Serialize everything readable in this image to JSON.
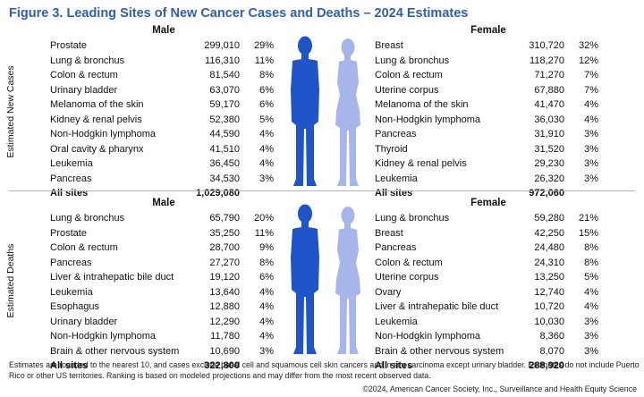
{
  "chart_data": {
    "type": "table",
    "title": "Figure 3. Leading Sites of New Cancer Cases and Deaths – 2024 Estimates",
    "sections": [
      {
        "label": "Estimated New Cases",
        "male": {
          "header": "Male",
          "rows": [
            {
              "site": "Prostate",
              "count": "299,010",
              "pct": "29%"
            },
            {
              "site": "Lung & bronchus",
              "count": "116,310",
              "pct": "11%"
            },
            {
              "site": "Colon & rectum",
              "count": "81,540",
              "pct": "8%"
            },
            {
              "site": "Urinary bladder",
              "count": "63,070",
              "pct": "6%"
            },
            {
              "site": "Melanoma of the skin",
              "count": "59,170",
              "pct": "6%"
            },
            {
              "site": "Kidney & renal pelvis",
              "count": "52,380",
              "pct": "5%"
            },
            {
              "site": "Non-Hodgkin lymphoma",
              "count": "44,590",
              "pct": "4%"
            },
            {
              "site": "Oral cavity & pharynx",
              "count": "41,510",
              "pct": "4%"
            },
            {
              "site": "Leukemia",
              "count": "36,450",
              "pct": "4%"
            },
            {
              "site": "Pancreas",
              "count": "34,530",
              "pct": "3%"
            }
          ],
          "total": {
            "site": "All sites",
            "count": "1,029,080"
          }
        },
        "female": {
          "header": "Female",
          "rows": [
            {
              "site": "Breast",
              "count": "310,720",
              "pct": "32%"
            },
            {
              "site": "Lung & bronchus",
              "count": "118,270",
              "pct": "12%"
            },
            {
              "site": "Colon & rectum",
              "count": "71,270",
              "pct": "7%"
            },
            {
              "site": "Uterine corpus",
              "count": "67,880",
              "pct": "7%"
            },
            {
              "site": "Melanoma of the skin",
              "count": "41,470",
              "pct": "4%"
            },
            {
              "site": "Non-Hodgkin lymphoma",
              "count": "36,030",
              "pct": "4%"
            },
            {
              "site": "Pancreas",
              "count": "31,910",
              "pct": "3%"
            },
            {
              "site": "Thyroid",
              "count": "31,520",
              "pct": "3%"
            },
            {
              "site": "Kidney & renal pelvis",
              "count": "29,230",
              "pct": "3%"
            },
            {
              "site": "Leukemia",
              "count": "26,320",
              "pct": "3%"
            }
          ],
          "total": {
            "site": "All sites",
            "count": "972,060"
          }
        }
      },
      {
        "label": "Estimated Deaths",
        "male": {
          "header": "Male",
          "rows": [
            {
              "site": "Lung & bronchus",
              "count": "65,790",
              "pct": "20%"
            },
            {
              "site": "Prostate",
              "count": "35,250",
              "pct": "11%"
            },
            {
              "site": "Colon & rectum",
              "count": "28,700",
              "pct": "9%"
            },
            {
              "site": "Pancreas",
              "count": "27,270",
              "pct": "8%"
            },
            {
              "site": "Liver & intrahepatic bile duct",
              "count": "19,120",
              "pct": "6%"
            },
            {
              "site": "Leukemia",
              "count": "13,640",
              "pct": "4%"
            },
            {
              "site": "Esophagus",
              "count": "12,880",
              "pct": "4%"
            },
            {
              "site": "Urinary bladder",
              "count": "12,290",
              "pct": "4%"
            },
            {
              "site": "Non-Hodgkin lymphoma",
              "count": "11,780",
              "pct": "4%"
            },
            {
              "site": "Brain & other nervous system",
              "count": "10,690",
              "pct": "3%"
            }
          ],
          "total": {
            "site": "All sites",
            "count": "322,800"
          }
        },
        "female": {
          "header": "Female",
          "rows": [
            {
              "site": "Lung & bronchus",
              "count": "59,280",
              "pct": "21%"
            },
            {
              "site": "Breast",
              "count": "42,250",
              "pct": "15%"
            },
            {
              "site": "Pancreas",
              "count": "24,480",
              "pct": "8%"
            },
            {
              "site": "Colon & rectum",
              "count": "24,310",
              "pct": "8%"
            },
            {
              "site": "Uterine corpus",
              "count": "13,250",
              "pct": "5%"
            },
            {
              "site": "Ovary",
              "count": "12,740",
              "pct": "4%"
            },
            {
              "site": "Liver & intrahepatic bile duct",
              "count": "10,720",
              "pct": "4%"
            },
            {
              "site": "Leukemia",
              "count": "10,030",
              "pct": "3%"
            },
            {
              "site": "Non-Hodgkin lymphoma",
              "count": "8,360",
              "pct": "3%"
            },
            {
              "site": "Brain & other nervous system",
              "count": "8,070",
              "pct": "3%"
            }
          ],
          "total": {
            "site": "All sites",
            "count": "288,920"
          }
        }
      }
    ],
    "footnote": "Estimates are rounded to the nearest 10, and cases exclude basal cell and squamous cell skin cancers and in situ carcinoma except urinary bladder. Estimates do not include Puerto Rico or other US territories. Ranking is based on modeled projections and may differ from the most recent observed data.",
    "copyright": "©2024, American Cancer Society, Inc., Surveillance and Health Equity Science"
  },
  "colors": {
    "title": "#2d5fb7",
    "male_figure": "#1f55c8",
    "female_figure": "#a7b6ea"
  }
}
